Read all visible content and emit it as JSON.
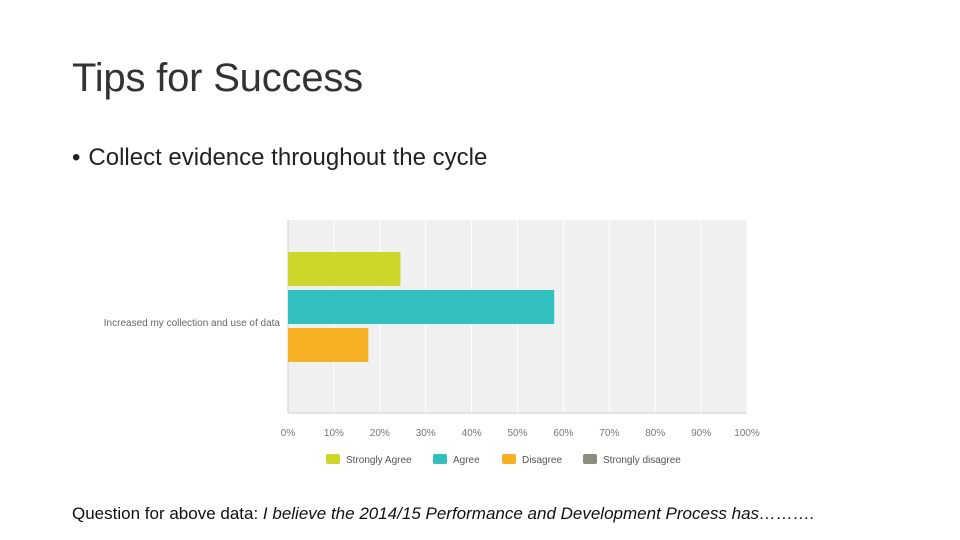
{
  "slide": {
    "title": "Tips for Success",
    "bullet": "Collect evidence throughout the cycle",
    "caption_prefix": "Question for above data:",
    "caption_question": "I believe the 2014/15 Performance and Development Process has………."
  },
  "chart_data": {
    "type": "bar",
    "orientation": "horizontal",
    "categories": [
      "Increased my collection and use of data"
    ],
    "series": [
      {
        "name": "Strongly Agree",
        "values": [
          24.5
        ],
        "color": "#cdd72b"
      },
      {
        "name": "Agree",
        "values": [
          58
        ],
        "color": "#33c0c0"
      },
      {
        "name": "Disagree",
        "values": [
          17.5
        ],
        "color": "#f5b123"
      },
      {
        "name": "Strongly disagree",
        "values": [
          0
        ],
        "color": "#8c8c7c"
      }
    ],
    "xlim": [
      0,
      100
    ],
    "x_ticks": [
      "0%",
      "10%",
      "20%",
      "30%",
      "40%",
      "50%",
      "60%",
      "70%",
      "80%",
      "90%",
      "100%"
    ],
    "grid": true,
    "legend": "bottom",
    "background": "#f0f0f0"
  }
}
